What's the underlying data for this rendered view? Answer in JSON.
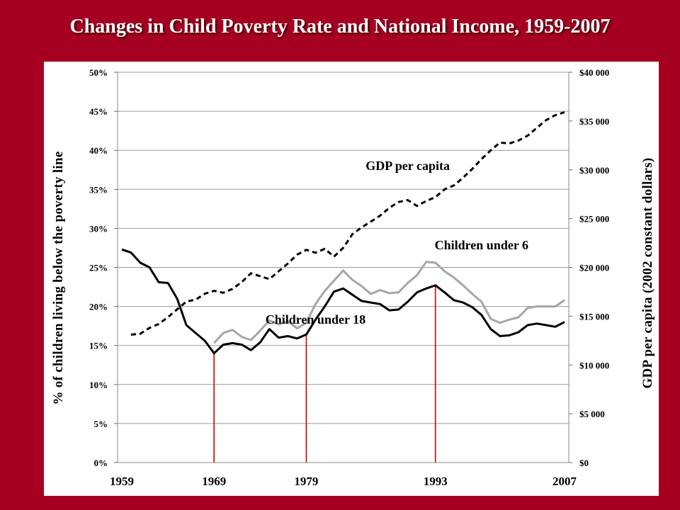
{
  "slide": {
    "title": "Changes in Child Poverty Rate and National Income, 1959-2007"
  },
  "colors": {
    "background": "#a50021",
    "panel": "#ffffff",
    "under18_line": "#000000",
    "under6_line": "#a6a6a6",
    "gdp_line": "#000000",
    "marker_lines": "#cc0000",
    "gridlines": "#999999"
  },
  "chart_data": {
    "type": "line",
    "title": "Changes in Child Poverty Rate and National Income, 1959-2007",
    "ylabel": "% of children living below the poverty line",
    "y2label": "GDP per capita (2002 constant dollars)",
    "xlabel": "",
    "xlim": [
      1959,
      2007
    ],
    "ylim": [
      0,
      50
    ],
    "y2lim": [
      0,
      40000
    ],
    "grid": true,
    "y_ticks": [
      "0%",
      "5%",
      "10%",
      "15%",
      "20%",
      "25%",
      "30%",
      "35%",
      "40%",
      "45%",
      "50%"
    ],
    "y2_ticks": [
      "$0",
      "$5 000",
      "$10 000",
      "$15 000",
      "$20 000",
      "$25 000",
      "$30 000",
      "$35 000",
      "$40 000"
    ],
    "x_ticks": [
      1959,
      1969,
      1979,
      1993,
      2007
    ],
    "marker_years": [
      1969,
      1979,
      1993
    ],
    "series": [
      {
        "name": "Children under 18",
        "axis": "left",
        "style": "solid",
        "x": [
          1959,
          1960,
          1961,
          1962,
          1963,
          1964,
          1965,
          1966,
          1967,
          1968,
          1969,
          1970,
          1971,
          1972,
          1973,
          1974,
          1975,
          1976,
          1977,
          1978,
          1979,
          1980,
          1981,
          1982,
          1983,
          1984,
          1985,
          1986,
          1987,
          1988,
          1989,
          1990,
          1991,
          1992,
          1993,
          1994,
          1995,
          1996,
          1997,
          1998,
          1999,
          2000,
          2001,
          2002,
          2003,
          2004,
          2005,
          2006,
          2007
        ],
        "values": [
          27.3,
          26.9,
          25.6,
          25.0,
          23.1,
          23.0,
          21.0,
          17.6,
          16.6,
          15.6,
          14.0,
          15.1,
          15.3,
          15.1,
          14.4,
          15.4,
          17.1,
          16.0,
          16.2,
          15.9,
          16.4,
          18.3,
          20.0,
          21.9,
          22.3,
          21.5,
          20.7,
          20.5,
          20.3,
          19.5,
          19.6,
          20.6,
          21.8,
          22.3,
          22.7,
          21.8,
          20.8,
          20.5,
          19.9,
          18.9,
          17.1,
          16.2,
          16.3,
          16.7,
          17.6,
          17.8,
          17.6,
          17.4,
          18.0
        ]
      },
      {
        "name": "Children under 6",
        "axis": "left",
        "style": "solid",
        "x": [
          1969,
          1970,
          1971,
          1972,
          1973,
          1974,
          1975,
          1976,
          1977,
          1978,
          1979,
          1980,
          1981,
          1982,
          1983,
          1984,
          1985,
          1986,
          1987,
          1988,
          1989,
          1990,
          1991,
          1992,
          1993,
          1994,
          1995,
          1996,
          1997,
          1998,
          1999,
          2000,
          2001,
          2002,
          2003,
          2004,
          2005,
          2006,
          2007
        ],
        "values": [
          15.3,
          16.6,
          17.0,
          16.1,
          15.7,
          16.9,
          18.2,
          17.7,
          18.1,
          17.2,
          17.9,
          20.3,
          22.0,
          23.3,
          24.6,
          23.4,
          22.6,
          21.6,
          22.1,
          21.7,
          21.8,
          23.0,
          24.0,
          25.7,
          25.6,
          24.5,
          23.7,
          22.7,
          21.6,
          20.6,
          18.4,
          17.9,
          18.3,
          18.6,
          19.8,
          20.0,
          20.0,
          20.0,
          20.8
        ]
      },
      {
        "name": "GDP per capita",
        "axis": "right",
        "style": "dashed",
        "x": [
          1960,
          1961,
          1962,
          1963,
          1964,
          1965,
          1966,
          1967,
          1968,
          1969,
          1970,
          1971,
          1972,
          1973,
          1974,
          1975,
          1976,
          1977,
          1978,
          1979,
          1980,
          1981,
          1982,
          1983,
          1984,
          1985,
          1986,
          1987,
          1988,
          1989,
          1990,
          1991,
          1992,
          1993,
          1994,
          1995,
          1996,
          1997,
          1998,
          1999,
          2000,
          2001,
          2002,
          2003,
          2004,
          2005,
          2006,
          2007
        ],
        "values": [
          13100,
          13200,
          13800,
          14200,
          14900,
          15700,
          16500,
          16700,
          17300,
          17600,
          17400,
          17800,
          18500,
          19400,
          19100,
          18800,
          19600,
          20400,
          21300,
          21800,
          21500,
          21900,
          21100,
          22000,
          23400,
          24100,
          24700,
          25300,
          26100,
          26700,
          26900,
          26300,
          26800,
          27200,
          28000,
          28400,
          29200,
          30100,
          31100,
          32000,
          32800,
          32700,
          33000,
          33500,
          34300,
          35100,
          35600,
          35900
        ]
      }
    ],
    "annotations": [
      {
        "text": "GDP per capita",
        "x": 1990,
        "y": 37.5
      },
      {
        "text": "Children under 6",
        "x": 1998,
        "y": 27.3
      },
      {
        "text": "Children under 18",
        "x": 1980,
        "y": 17.8
      }
    ]
  }
}
